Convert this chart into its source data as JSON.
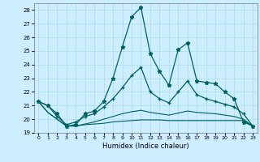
{
  "title": "",
  "xlabel": "Humidex (Indice chaleur)",
  "background_color": "#cceeff",
  "grid_color": "#aadddd",
  "line_color": "#006060",
  "x": [
    0,
    1,
    2,
    3,
    4,
    5,
    6,
    7,
    8,
    9,
    10,
    11,
    12,
    13,
    14,
    15,
    16,
    17,
    18,
    19,
    20,
    21,
    22,
    23
  ],
  "line_main": [
    21.3,
    21.0,
    20.4,
    19.5,
    19.6,
    20.4,
    20.6,
    21.3,
    23.0,
    25.3,
    27.5,
    28.2,
    24.8,
    23.5,
    22.5,
    25.1,
    25.6,
    22.8,
    22.7,
    22.6,
    22.0,
    21.5,
    19.8,
    19.5
  ],
  "line_smooth": [
    21.3,
    21.0,
    20.2,
    19.6,
    19.8,
    20.2,
    20.4,
    20.9,
    21.5,
    22.3,
    23.2,
    23.8,
    22.0,
    21.5,
    21.2,
    22.0,
    22.8,
    21.8,
    21.5,
    21.3,
    21.1,
    20.9,
    20.4,
    19.5
  ],
  "line_low1": [
    21.3,
    20.5,
    20.0,
    19.5,
    19.5,
    19.6,
    19.65,
    19.7,
    19.8,
    19.85,
    19.9,
    19.95,
    19.95,
    19.95,
    19.9,
    19.9,
    19.9,
    19.9,
    19.9,
    19.9,
    19.9,
    19.9,
    19.9,
    19.5
  ],
  "line_low2": [
    21.3,
    20.5,
    20.0,
    19.5,
    19.5,
    19.65,
    19.8,
    20.0,
    20.2,
    20.4,
    20.55,
    20.65,
    20.5,
    20.4,
    20.3,
    20.45,
    20.6,
    20.5,
    20.45,
    20.4,
    20.3,
    20.2,
    20.0,
    19.5
  ],
  "ylim": [
    19,
    28.5
  ],
  "xlim": [
    -0.5,
    23.5
  ],
  "yticks": [
    19,
    20,
    21,
    22,
    23,
    24,
    25,
    26,
    27,
    28
  ],
  "xticks": [
    0,
    1,
    2,
    3,
    4,
    5,
    6,
    7,
    8,
    9,
    10,
    11,
    12,
    13,
    14,
    15,
    16,
    17,
    18,
    19,
    20,
    21,
    22,
    23
  ]
}
